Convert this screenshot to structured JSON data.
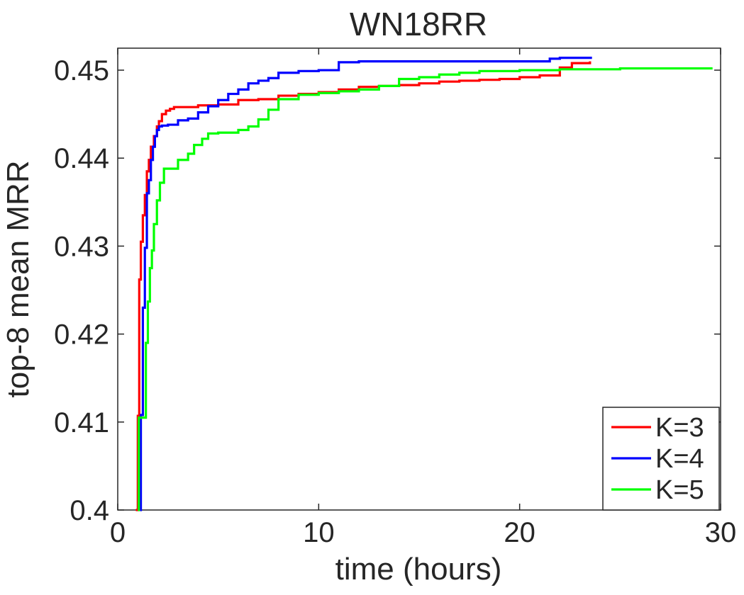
{
  "chart_data": {
    "type": "line",
    "title": "WN18RR",
    "xlabel": "time (hours)",
    "ylabel": "top-8 mean MRR",
    "xlim": [
      0,
      30
    ],
    "ylim": [
      0.4,
      0.4525
    ],
    "xticks": [
      0,
      10,
      20,
      30
    ],
    "xtick_labels": [
      "0",
      "10",
      "20",
      "30"
    ],
    "yticks": [
      0.4,
      0.41,
      0.42,
      0.43,
      0.44,
      0.45
    ],
    "ytick_labels": [
      "0.4",
      "0.41",
      "0.42",
      "0.43",
      "0.44",
      "0.45"
    ],
    "grid": false,
    "legend_position": "bottom-right",
    "series": [
      {
        "name": "K=3",
        "color": "#ff0000",
        "step": true,
        "x": [
          0.9,
          1.0,
          1.07,
          1.15,
          1.25,
          1.35,
          1.45,
          1.55,
          1.65,
          1.8,
          1.95,
          2.05,
          2.2,
          2.4,
          2.6,
          2.8,
          3.0,
          4.0,
          5.0,
          6.0,
          7.0,
          8.0,
          9.0,
          10.0,
          11.0,
          12.0,
          13.0,
          14.0,
          15.0,
          16.0,
          17.0,
          18.0,
          19.0,
          20.0,
          21.0,
          22.0,
          22.6,
          23.5
        ],
        "y": [
          0.4,
          0.4107,
          0.4262,
          0.4305,
          0.4335,
          0.4358,
          0.4385,
          0.4398,
          0.4413,
          0.4425,
          0.4436,
          0.4442,
          0.445,
          0.4454,
          0.4456,
          0.4458,
          0.4458,
          0.446,
          0.4461,
          0.4466,
          0.4467,
          0.4471,
          0.4473,
          0.4475,
          0.4478,
          0.4481,
          0.4482,
          0.4483,
          0.4485,
          0.4487,
          0.4488,
          0.4489,
          0.449,
          0.4492,
          0.4494,
          0.4503,
          0.4508,
          0.451
        ]
      },
      {
        "name": "K=4",
        "color": "#0000ff",
        "step": true,
        "x": [
          1.1,
          1.15,
          1.25,
          1.35,
          1.45,
          1.55,
          1.65,
          1.75,
          1.85,
          1.95,
          2.05,
          2.2,
          2.5,
          3.0,
          3.5,
          4.0,
          4.5,
          5.0,
          5.5,
          6.0,
          6.5,
          7.0,
          7.5,
          8.0,
          9.0,
          10.0,
          11.0,
          12.0,
          15.0,
          18.0,
          21.0,
          21.5,
          22.0,
          23.6
        ],
        "y": [
          0.4,
          0.4108,
          0.423,
          0.4298,
          0.436,
          0.4375,
          0.4398,
          0.4413,
          0.4425,
          0.4432,
          0.4436,
          0.4437,
          0.4438,
          0.4443,
          0.4445,
          0.4452,
          0.4459,
          0.4466,
          0.4473,
          0.4478,
          0.4485,
          0.4488,
          0.4491,
          0.4497,
          0.4499,
          0.45,
          0.4509,
          0.451,
          0.451,
          0.451,
          0.451,
          0.4513,
          0.4514,
          0.4514
        ]
      },
      {
        "name": "K=5",
        "color": "#00ff00",
        "step": true,
        "x": [
          1.0,
          1.05,
          1.4,
          1.5,
          1.6,
          1.7,
          1.8,
          1.95,
          2.1,
          2.3,
          3.0,
          3.5,
          3.8,
          4.2,
          4.5,
          5.0,
          6.0,
          6.5,
          7.0,
          7.5,
          8.0,
          9.0,
          10.0,
          11.0,
          12.0,
          13.0,
          14.0,
          15.0,
          16.0,
          17.0,
          18.0,
          20.0,
          22.0,
          25.0,
          29.6
        ],
        "y": [
          0.4,
          0.4105,
          0.419,
          0.4237,
          0.4275,
          0.4295,
          0.4325,
          0.4352,
          0.4372,
          0.4388,
          0.4398,
          0.4405,
          0.4415,
          0.4422,
          0.4428,
          0.4429,
          0.4432,
          0.4436,
          0.4444,
          0.4455,
          0.4467,
          0.4472,
          0.4474,
          0.4476,
          0.4478,
          0.4482,
          0.449,
          0.4492,
          0.4495,
          0.4497,
          0.4499,
          0.45,
          0.4501,
          0.4502,
          0.4502
        ]
      }
    ]
  }
}
